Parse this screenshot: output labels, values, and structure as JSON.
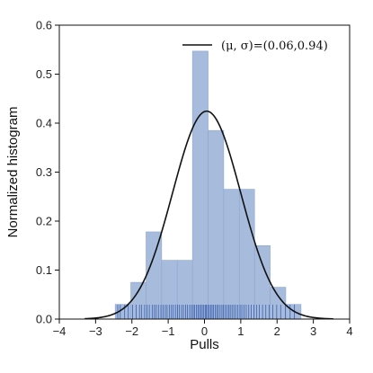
{
  "chart_data": {
    "type": "bar",
    "xlabel": "Pulls",
    "ylabel": "Normalized histogram",
    "xlim": [
      -4,
      4
    ],
    "ylim": [
      0,
      0.6
    ],
    "xticks": [
      -4,
      -3,
      -2,
      -1,
      0,
      1,
      2,
      3,
      4
    ],
    "xtick_labels": [
      "−4",
      "−3",
      "−2",
      "−1",
      "0",
      "1",
      "2",
      "3",
      "4"
    ],
    "yticks": [
      0.0,
      0.1,
      0.2,
      0.3,
      0.4,
      0.5,
      0.6
    ],
    "ytick_labels": [
      "0.0",
      "0.1",
      "0.2",
      "0.3",
      "0.4",
      "0.5",
      "0.6"
    ],
    "grid": false,
    "legend_position": "top-right",
    "legend_label": "(μ, σ)=(0.06,0.94)",
    "histogram": {
      "color": "#a7bcdc",
      "edge_color": "#8ea6cf",
      "bins": [
        {
          "x0": -2.46,
          "x1": -2.03,
          "value": 0.03
        },
        {
          "x0": -2.03,
          "x1": -1.61,
          "value": 0.075
        },
        {
          "x0": -1.61,
          "x1": -1.18,
          "value": 0.178
        },
        {
          "x0": -1.18,
          "x1": -0.75,
          "value": 0.12
        },
        {
          "x0": -0.75,
          "x1": -0.33,
          "value": 0.12
        },
        {
          "x0": -0.33,
          "x1": 0.1,
          "value": 0.547
        },
        {
          "x0": 0.1,
          "x1": 0.53,
          "value": 0.385
        },
        {
          "x0": 0.53,
          "x1": 0.96,
          "value": 0.265
        },
        {
          "x0": 0.96,
          "x1": 1.38,
          "value": 0.265
        },
        {
          "x0": 1.38,
          "x1": 1.81,
          "value": 0.15
        },
        {
          "x0": 1.81,
          "x1": 2.24,
          "value": 0.065
        },
        {
          "x0": 2.24,
          "x1": 2.66,
          "value": 0.03
        }
      ]
    },
    "fit_curve": {
      "mu": 0.06,
      "sigma": 0.94,
      "color": "#111111"
    },
    "rug": {
      "color": "#3a5fb0",
      "values": [
        -2.39,
        -2.32,
        -2.2,
        -2.1,
        -1.98,
        -1.88,
        -1.79,
        -1.73,
        -1.65,
        -1.58,
        -1.52,
        -1.44,
        -1.38,
        -1.33,
        -1.27,
        -1.2,
        -1.14,
        -1.08,
        -1.03,
        -0.97,
        -0.91,
        -0.86,
        -0.8,
        -0.74,
        -0.69,
        -0.63,
        -0.58,
        -0.52,
        -0.47,
        -0.41,
        -0.36,
        -0.31,
        -0.27,
        -0.22,
        -0.18,
        -0.14,
        -0.1,
        -0.06,
        -0.02,
        0.02,
        0.05,
        0.09,
        0.13,
        0.17,
        0.21,
        0.25,
        0.3,
        0.34,
        0.38,
        0.43,
        0.48,
        0.52,
        0.57,
        0.62,
        0.67,
        0.71,
        0.76,
        0.81,
        0.86,
        0.92,
        0.98,
        1.03,
        1.09,
        1.15,
        1.22,
        1.29,
        1.36,
        1.44,
        1.51,
        1.6,
        1.69,
        1.78,
        1.88,
        1.99,
        2.1,
        2.23,
        2.36,
        2.48
      ]
    }
  }
}
